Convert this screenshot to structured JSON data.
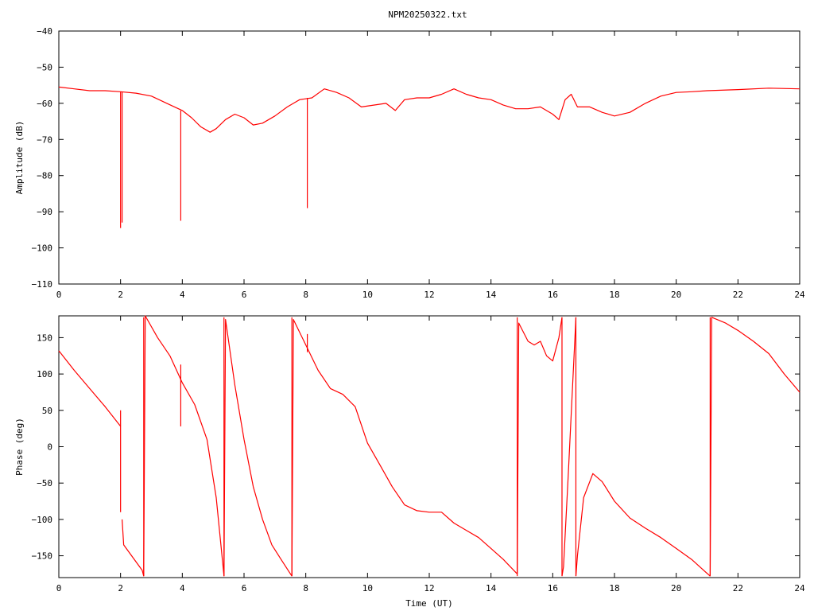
{
  "title": "NPM20250322.txt",
  "trace_color": "#ff0000",
  "chart_data": [
    {
      "type": "line",
      "name": "amplitude-panel",
      "ylabel": "Amplitude (dB)",
      "xlabel": "",
      "xlim": [
        0,
        24
      ],
      "ylim": [
        -110,
        -40
      ],
      "xticks": [
        0,
        2,
        4,
        6,
        8,
        10,
        12,
        14,
        16,
        18,
        20,
        22,
        24
      ],
      "yticks": [
        -40,
        -50,
        -60,
        -70,
        -80,
        -90,
        -100,
        -110
      ],
      "x": [
        0,
        0.5,
        1,
        1.5,
        2,
        2.5,
        3,
        3.5,
        4,
        4.3,
        4.6,
        4.9,
        5.1,
        5.4,
        5.7,
        6.0,
        6.3,
        6.6,
        7.0,
        7.4,
        7.8,
        8.2,
        8.6,
        9.0,
        9.4,
        9.8,
        10.2,
        10.6,
        10.9,
        11.2,
        11.6,
        12.0,
        12.4,
        12.8,
        13.2,
        13.6,
        14.0,
        14.4,
        14.8,
        15.2,
        15.6,
        16.0,
        16.2,
        16.4,
        16.6,
        16.8,
        17.2,
        17.6,
        18.0,
        18.5,
        19.0,
        19.5,
        20.0,
        20.5,
        21.0,
        22.0,
        23.0,
        24.0
      ],
      "y": [
        -55.5,
        -56,
        -56.5,
        -56.5,
        -56.8,
        -57.2,
        -58,
        -60,
        -62,
        -64,
        -66.5,
        -68,
        -67,
        -64.5,
        -63,
        -64,
        -66,
        -65.5,
        -63.5,
        -61,
        -59,
        -58.5,
        -56,
        -57,
        -58.5,
        -61,
        -60.5,
        -60,
        -62,
        -59,
        -58.5,
        -58.5,
        -57.5,
        -56,
        -57.5,
        -58.5,
        -59,
        -60.5,
        -61.5,
        -61.5,
        -61,
        -63,
        -64.5,
        -59,
        -57.5,
        -61,
        -61,
        -62.5,
        -63.5,
        -62.5,
        -60,
        -58,
        -57,
        -56.8,
        -56.5,
        -56.2,
        -55.8,
        -56
      ],
      "spikes": [
        {
          "x": 2.0,
          "y_from": -56.8,
          "y_to": -94.5
        },
        {
          "x": 2.05,
          "y_from": -56.8,
          "y_to": -93
        },
        {
          "x": 3.95,
          "y_from": -62,
          "y_to": -92.5
        },
        {
          "x": 8.05,
          "y_from": -58.5,
          "y_to": -89
        }
      ]
    },
    {
      "type": "line",
      "name": "phase-panel",
      "ylabel": "Phase (deg)",
      "xlabel": "Time (UT)",
      "xlim": [
        0,
        24
      ],
      "ylim": [
        -180,
        180
      ],
      "xticks": [
        0,
        2,
        4,
        6,
        8,
        10,
        12,
        14,
        16,
        18,
        20,
        22,
        24
      ],
      "yticks": [
        150,
        100,
        50,
        0,
        -50,
        -100,
        -150
      ],
      "segments": [
        {
          "x": [
            0,
            0.5,
            1.0,
            1.5,
            2.0
          ],
          "y": [
            132,
            105,
            80,
            55,
            28
          ]
        },
        {
          "x": [
            2.05,
            2.1,
            2.7,
            2.75
          ],
          "y": [
            -100,
            -135,
            -170,
            -178
          ]
        },
        {
          "x": [
            2.75,
            2.8,
            3.2,
            3.6,
            4.0,
            4.4,
            4.8,
            5.1,
            5.35
          ],
          "y": [
            -178,
            180,
            150,
            125,
            88,
            58,
            10,
            -70,
            -178
          ]
        },
        {
          "x": [
            5.35,
            5.4,
            5.7,
            6.0,
            6.3,
            6.6,
            6.9,
            7.2,
            7.55
          ],
          "y": [
            -178,
            175,
            85,
            10,
            -55,
            -100,
            -135,
            -155,
            -178
          ]
        },
        {
          "x": [
            7.55,
            7.6,
            8.0,
            8.4,
            8.8,
            9.2,
            9.6,
            10.0,
            10.4,
            10.8,
            11.2,
            11.6,
            12.0,
            12.4,
            12.8,
            13.2,
            13.6,
            14.0,
            14.4,
            14.85
          ],
          "y": [
            -178,
            175,
            140,
            105,
            80,
            72,
            55,
            5,
            -25,
            -55,
            -80,
            -88,
            -90,
            -90,
            -105,
            -115,
            -125,
            -140,
            -155,
            -175
          ]
        },
        {
          "x": [
            14.85,
            14.9,
            15.2,
            15.4,
            15.6,
            15.8,
            16.0,
            16.2,
            16.3
          ],
          "y": [
            -175,
            170,
            145,
            140,
            145,
            125,
            118,
            150,
            178
          ]
        },
        {
          "x": [
            16.3,
            16.35,
            16.5,
            16.75
          ],
          "y": [
            -178,
            -165,
            -40,
            178
          ]
        },
        {
          "x": [
            16.75,
            16.8,
            17.0,
            17.3,
            17.6,
            18.0,
            18.5,
            19.0,
            19.5,
            20.0,
            20.5,
            21.1
          ],
          "y": [
            -178,
            -150,
            -70,
            -37,
            -48,
            -75,
            -98,
            -112,
            -125,
            -140,
            -155,
            -178
          ]
        },
        {
          "x": [
            21.1,
            21.15,
            21.6,
            22.0,
            22.5,
            23.0,
            23.5,
            24.0
          ],
          "y": [
            -178,
            178,
            170,
            160,
            145,
            128,
            100,
            75
          ]
        }
      ],
      "spikes": [
        {
          "x": 2.0,
          "y_from": 50,
          "y_to": -90
        },
        {
          "x": 2.75,
          "y_from": -178,
          "y_to": 178
        },
        {
          "x": 3.95,
          "y_from": 113,
          "y_to": 28
        },
        {
          "x": 5.35,
          "y_from": -178,
          "y_to": 178
        },
        {
          "x": 7.55,
          "y_from": -178,
          "y_to": 178
        },
        {
          "x": 8.05,
          "y_from": 155,
          "y_to": 130
        },
        {
          "x": 14.85,
          "y_from": -178,
          "y_to": 178
        },
        {
          "x": 16.3,
          "y_from": -178,
          "y_to": 178
        },
        {
          "x": 16.75,
          "y_from": -178,
          "y_to": 178
        },
        {
          "x": 21.1,
          "y_from": -178,
          "y_to": 178
        }
      ]
    }
  ]
}
